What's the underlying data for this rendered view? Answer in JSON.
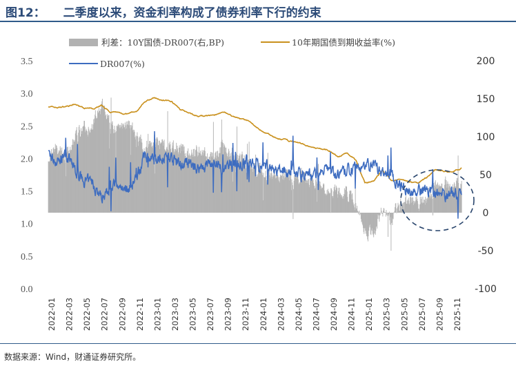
{
  "header": {
    "figure_no": "图12：",
    "title": "二季度以来，资金利率构成了债券利率下行的约束"
  },
  "source": "数据来源：Wind，财通证券研究所。",
  "chart_data": {
    "type": "area+line",
    "title": "二季度以来，资金利率构成了债券利率下行的约束",
    "legend": [
      {
        "name": "利差：10Y国债-DR007(右,BP)",
        "color": "#b2b2b2",
        "kind": "area"
      },
      {
        "name": "10年期国债到期收益率(%)",
        "color": "#c9901c",
        "kind": "line"
      },
      {
        "name": "DR007(%)",
        "color": "#3d6cc0",
        "kind": "line"
      }
    ],
    "left_axis": {
      "min": 0.0,
      "max": 3.5,
      "ticks": [
        "0.0",
        "0.5",
        "1.0",
        "1.5",
        "2.0",
        "2.5",
        "3.0",
        "3.5"
      ]
    },
    "right_axis": {
      "min": -100,
      "max": 200,
      "ticks": [
        "-100",
        "-50",
        "0",
        "50",
        "100",
        "150",
        "200"
      ]
    },
    "x_ticks": [
      "2022-01",
      "2022-03",
      "2022-05",
      "2022-07",
      "2022-09",
      "2022-11",
      "2023-01",
      "2023-03",
      "2023-05",
      "2023-07",
      "2023-09",
      "2023-11",
      "2024-01",
      "2024-03",
      "2024-05",
      "2024-07",
      "2024-09",
      "2024-11",
      "2025-01",
      "2025-03",
      "2025-05",
      "2025-07",
      "2025-09",
      "2025-11"
    ],
    "yield_10y_monthly": [
      2.8,
      2.78,
      2.8,
      2.83,
      2.78,
      2.76,
      2.82,
      2.72,
      2.7,
      2.68,
      2.72,
      2.88,
      2.93,
      2.9,
      2.88,
      2.76,
      2.7,
      2.65,
      2.65,
      2.67,
      2.7,
      2.65,
      2.6,
      2.56,
      2.45,
      2.38,
      2.3,
      2.28,
      2.25,
      2.22,
      2.16,
      2.15,
      2.12,
      2.03,
      2.08,
      1.98,
      1.63,
      1.65,
      1.82,
      1.65,
      1.68,
      1.65,
      1.62,
      1.7,
      1.83,
      1.8,
      1.8,
      1.85
    ],
    "dr007_monthly": [
      2.05,
      1.95,
      2.05,
      1.85,
      1.65,
      1.62,
      1.4,
      1.55,
      1.6,
      1.55,
      1.68,
      2.05,
      1.95,
      2.05,
      2.0,
      1.9,
      1.9,
      1.85,
      1.9,
      1.95,
      1.8,
      1.9,
      1.9,
      2.0,
      1.85,
      1.85,
      1.8,
      1.8,
      1.82,
      1.75,
      1.75,
      1.75,
      1.85,
      1.75,
      1.8,
      1.9,
      1.9,
      1.9,
      1.75,
      1.75,
      1.6,
      1.5,
      1.48,
      1.52,
      1.48,
      1.45,
      1.48,
      1.45
    ]
  }
}
